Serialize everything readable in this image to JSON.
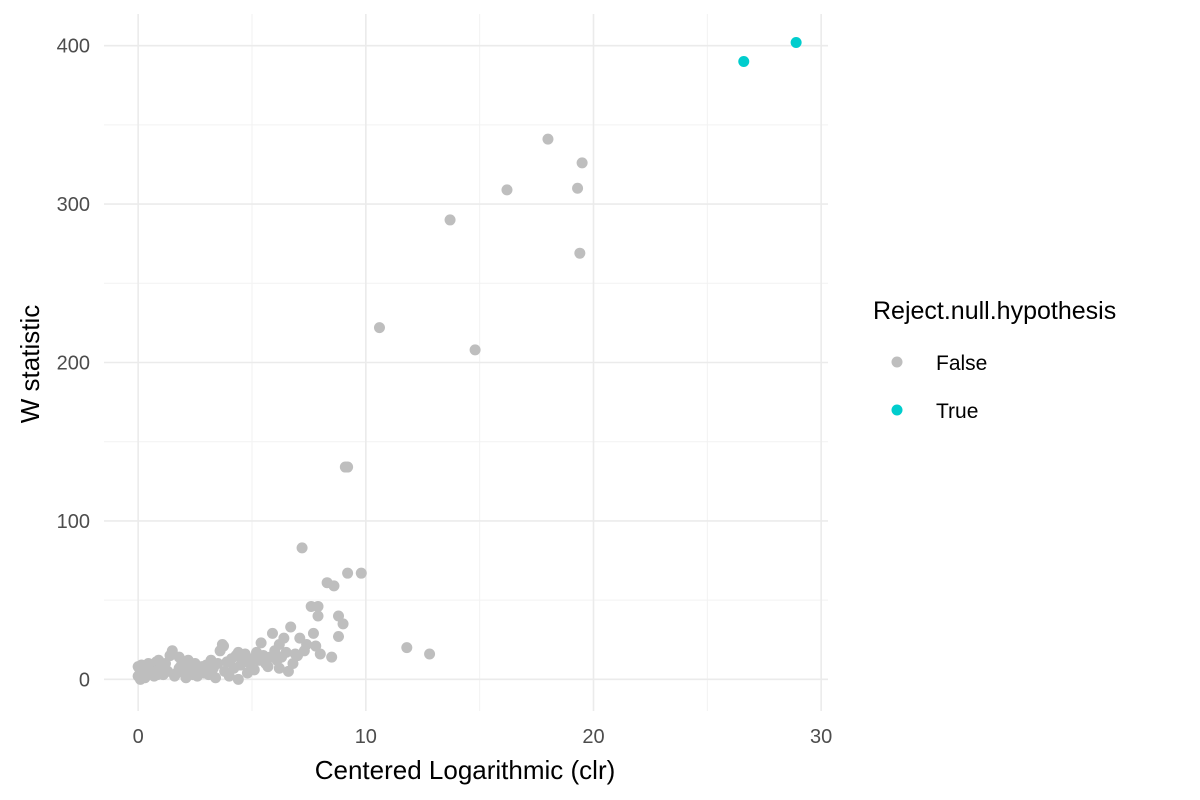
{
  "chart_data": {
    "type": "scatter",
    "xlabel": "Centered Logarithmic (clr)",
    "ylabel": "W statistic",
    "xlim": [
      -1.5,
      30.3
    ],
    "ylim": [
      -20,
      420
    ],
    "x_ticks": [
      0,
      10,
      20,
      30
    ],
    "x_tick_labels": [
      "0",
      "10",
      "20",
      "30"
    ],
    "y_ticks": [
      0,
      100,
      200,
      300,
      400
    ],
    "y_tick_labels": [
      "0",
      "100",
      "200",
      "300",
      "400"
    ],
    "grid": true,
    "legend": {
      "title": "Reject.null.hypothesis",
      "position": "right",
      "entries": [
        {
          "label": "False",
          "color": "#bebebe"
        },
        {
          "label": "True",
          "color": "#00cdcd"
        }
      ]
    },
    "series": [
      {
        "name": "False",
        "color": "#bebebe",
        "points": [
          [
            18.0,
            341
          ],
          [
            19.5,
            326
          ],
          [
            16.2,
            309
          ],
          [
            19.3,
            310
          ],
          [
            13.7,
            290
          ],
          [
            19.4,
            269
          ],
          [
            10.6,
            222
          ],
          [
            14.8,
            208
          ],
          [
            9.1,
            134
          ],
          [
            9.2,
            134
          ],
          [
            7.2,
            83
          ],
          [
            9.2,
            67
          ],
          [
            9.8,
            67
          ],
          [
            8.3,
            61
          ],
          [
            8.6,
            59
          ],
          [
            7.6,
            46
          ],
          [
            7.9,
            46
          ],
          [
            8.8,
            40
          ],
          [
            7.9,
            40
          ],
          [
            9.0,
            35
          ],
          [
            6.7,
            33
          ],
          [
            7.7,
            29
          ],
          [
            8.8,
            27
          ],
          [
            6.4,
            26
          ],
          [
            5.9,
            29
          ],
          [
            7.1,
            26
          ],
          [
            7.4,
            22
          ],
          [
            7.8,
            21
          ],
          [
            11.8,
            20
          ],
          [
            12.8,
            16
          ],
          [
            8.0,
            16
          ],
          [
            8.5,
            14
          ],
          [
            6.2,
            22
          ],
          [
            5.4,
            23
          ],
          [
            6.0,
            18
          ],
          [
            6.5,
            17
          ],
          [
            6.9,
            16
          ],
          [
            7.0,
            15
          ],
          [
            5.5,
            15
          ],
          [
            5.8,
            14
          ],
          [
            5.2,
            17
          ],
          [
            4.7,
            16
          ],
          [
            4.4,
            17
          ],
          [
            4.6,
            12
          ],
          [
            4.1,
            13
          ],
          [
            3.9,
            11
          ],
          [
            3.7,
            22
          ],
          [
            3.6,
            18
          ],
          [
            3.2,
            12
          ],
          [
            3.5,
            10
          ],
          [
            3.0,
            9
          ],
          [
            2.8,
            8
          ],
          [
            2.5,
            10
          ],
          [
            2.2,
            8
          ],
          [
            2.0,
            6
          ],
          [
            1.8,
            7
          ],
          [
            1.5,
            18
          ],
          [
            1.4,
            15
          ],
          [
            1.2,
            10
          ],
          [
            1.0,
            8
          ],
          [
            0.8,
            11
          ],
          [
            0.6,
            9
          ],
          [
            0.4,
            8
          ],
          [
            0.2,
            6
          ],
          [
            0.1,
            4
          ],
          [
            0.0,
            2
          ],
          [
            0.3,
            1
          ],
          [
            0.7,
            2
          ],
          [
            1.1,
            3
          ],
          [
            1.6,
            2
          ],
          [
            2.1,
            1
          ],
          [
            2.6,
            2
          ],
          [
            3.1,
            3
          ],
          [
            3.4,
            1
          ],
          [
            4.0,
            2
          ],
          [
            4.4,
            0
          ],
          [
            4.8,
            4
          ],
          [
            5.1,
            6
          ],
          [
            5.6,
            10
          ],
          [
            6.2,
            7
          ],
          [
            6.6,
            5
          ],
          [
            5.3,
            12
          ],
          [
            0.05,
            7
          ],
          [
            0.15,
            9
          ],
          [
            0.25,
            5
          ],
          [
            0.35,
            3
          ],
          [
            0.5,
            6
          ],
          [
            0.55,
            4
          ],
          [
            0.65,
            7
          ],
          [
            0.75,
            5
          ],
          [
            0.85,
            3
          ],
          [
            0.9,
            6
          ],
          [
            1.3,
            5
          ],
          [
            1.7,
            4
          ],
          [
            1.9,
            9
          ],
          [
            2.3,
            5
          ],
          [
            2.4,
            3
          ],
          [
            2.7,
            6
          ],
          [
            2.9,
            4
          ],
          [
            3.3,
            7
          ],
          [
            3.8,
            5
          ],
          [
            4.2,
            7
          ],
          [
            4.5,
            9
          ],
          [
            4.9,
            10
          ],
          [
            5.0,
            13
          ],
          [
            5.7,
            8
          ],
          [
            6.1,
            12
          ],
          [
            6.3,
            14
          ],
          [
            6.8,
            10
          ],
          [
            7.3,
            18
          ],
          [
            3.75,
            21
          ],
          [
            4.3,
            15
          ],
          [
            2.2,
            12
          ],
          [
            1.8,
            14
          ],
          [
            0.9,
            12
          ],
          [
            0.45,
            10
          ],
          [
            0.0,
            8
          ],
          [
            0.1,
            0
          ]
        ]
      },
      {
        "name": "True",
        "color": "#00cdcd",
        "points": [
          [
            26.6,
            390
          ],
          [
            28.9,
            402
          ]
        ]
      }
    ]
  }
}
